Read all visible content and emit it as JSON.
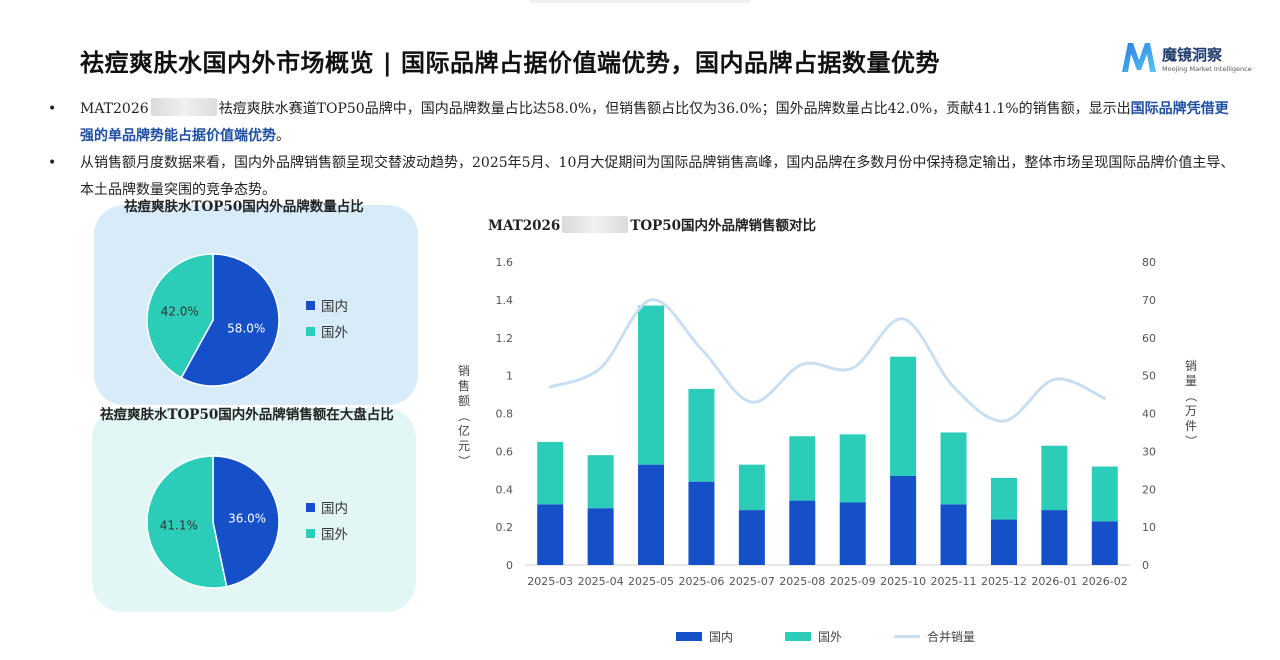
{
  "header": {
    "title": "祛痘爽肤水国内外市场概览 | 国际品牌占据价值端优势，国内品牌占据数量优势",
    "logo_name": "魔镜洞察",
    "logo_sub": "Moojing Market Intelligence"
  },
  "bullets": [
    {
      "dot": "•",
      "prefix": "MAT2026",
      "text": "祛痘爽肤水赛道TOP50品牌中，国内品牌数量占比达58.0%，但销售额占比仅为36.0%；国外品牌数量占比42.0%，贡献41.1%的销售额，显示出",
      "highlight": "国际品牌凭借更强的单品牌势能占据价值端优势",
      "suffix": "。"
    },
    {
      "dot": "•",
      "text": "从销售额月度数据来看，国内外品牌销售额呈现交替波动趋势，2025年5月、10月大促期间为国际品牌销售高峰，国内品牌在多数月份中保持稳定输出，整体市场呈现国际品牌价值主导、本土品牌数量突围的竞争态势。"
    }
  ],
  "colors": {
    "domestic": "#1550c8",
    "foreign": "#2ccdb8",
    "line": "#c9dff1",
    "highlight": "#1f4fa3",
    "card1": "#d8ebf9",
    "card2": "#e3f6f6"
  },
  "pie_cards": [
    {
      "title": "祛痘爽肤水TOP50国内外品牌数量占比",
      "legend": [
        "国内",
        "国外"
      ]
    },
    {
      "title": "祛痘爽肤水TOP50国内外品牌销售额在大盘占比",
      "legend": [
        "国内",
        "国外"
      ]
    }
  ],
  "chart_data": [
    {
      "type": "pie",
      "title": "祛痘爽肤水TOP50国内外品牌数量占比",
      "labels": [
        "国内",
        "国外"
      ],
      "values": [
        58.0,
        42.0
      ],
      "value_labels": [
        "58.0%",
        "42.0%"
      ]
    },
    {
      "type": "pie",
      "title": "祛痘爽肤水TOP50国内外品牌销售额在大盘占比",
      "labels": [
        "国内",
        "国外"
      ],
      "values": [
        36.0,
        41.1
      ],
      "value_labels": [
        "36.0%",
        "41.1%"
      ]
    },
    {
      "type": "bar",
      "stacked": true,
      "title_prefix": "MAT2026",
      "title": "TOP50国内外品牌销售额对比",
      "categories": [
        "2025-03",
        "2025-04",
        "2025-05",
        "2025-06",
        "2025-07",
        "2025-08",
        "2025-09",
        "2025-10",
        "2025-11",
        "2025-12",
        "2026-01",
        "2026-02"
      ],
      "series": [
        {
          "name": "国内",
          "values": [
            0.32,
            0.3,
            0.53,
            0.44,
            0.29,
            0.34,
            0.33,
            0.47,
            0.32,
            0.24,
            0.29,
            0.23
          ]
        },
        {
          "name": "国外",
          "values": [
            0.33,
            0.28,
            0.84,
            0.49,
            0.24,
            0.34,
            0.36,
            0.63,
            0.38,
            0.22,
            0.34,
            0.29
          ]
        }
      ],
      "line_series": {
        "name": "合并销量",
        "axis": "right",
        "values": [
          47,
          52,
          70,
          57,
          43,
          53,
          52,
          65,
          47,
          38,
          49,
          44
        ]
      },
      "ylabel": "销售额（亿元）",
      "ylabel2": "销量（万件）",
      "ylim": [
        0,
        1.6
      ],
      "yticks": [
        "0",
        "0.2",
        "0.4",
        "0.6",
        "0.8",
        "1",
        "1.2",
        "1.4",
        "1.6"
      ],
      "ylim2": [
        0,
        80
      ],
      "yticks2": [
        "0",
        "10",
        "20",
        "30",
        "40",
        "50",
        "60",
        "70",
        "80"
      ],
      "legend": [
        "国内",
        "国外",
        "合并销量"
      ],
      "grid": false,
      "legend_position": "bottom"
    }
  ]
}
